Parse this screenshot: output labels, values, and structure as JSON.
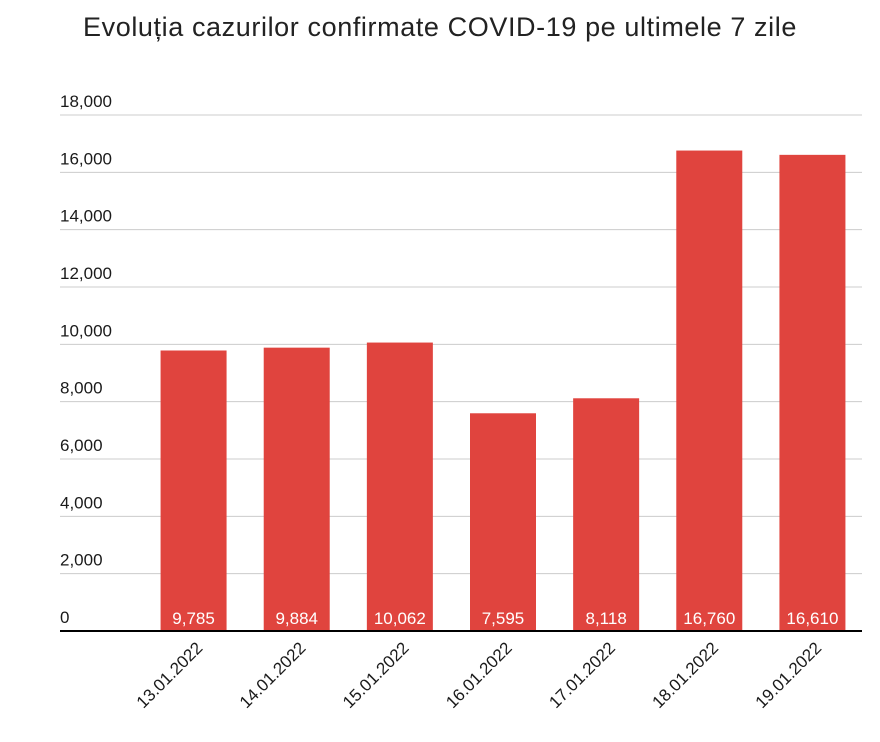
{
  "chart_data": {
    "type": "bar",
    "title": "Evoluția cazurilor confirmate COVID-19 pe ultimele 7 zile",
    "categories": [
      "13.01.2022",
      "14.01.2022",
      "15.01.2022",
      "16.01.2022",
      "17.01.2022",
      "18.01.2022",
      "19.01.2022"
    ],
    "values": [
      9785,
      9884,
      10062,
      7595,
      8118,
      16760,
      16610
    ],
    "value_labels": [
      "9,785",
      "9,884",
      "10,062",
      "7,595",
      "8,118",
      "16,760",
      "16,610"
    ],
    "ylim": [
      0,
      18000
    ],
    "yticks": [
      0,
      2000,
      4000,
      6000,
      8000,
      10000,
      12000,
      14000,
      16000,
      18000
    ],
    "ytick_labels": [
      "0",
      "2,000",
      "4,000",
      "6,000",
      "8,000",
      "10,000",
      "12,000",
      "14,000",
      "16,000",
      "18,000"
    ],
    "xlabel": "",
    "ylabel": "",
    "grid": true,
    "legend": "none",
    "colors": {
      "bar": "#e0443e",
      "grid": "#cccccc",
      "axis": "#000000",
      "data_label": "#ffffff"
    }
  }
}
